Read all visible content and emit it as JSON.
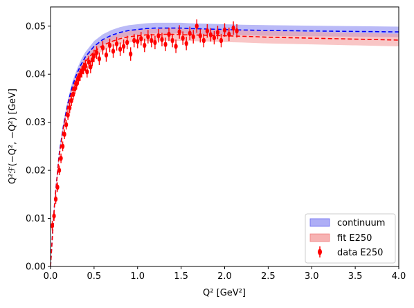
{
  "chart_data": {
    "type": "line",
    "title": "",
    "xlabel": "Q² [GeV²]",
    "ylabel": "Q²ℱ(−Q², −Q²) [GeV]",
    "xlim": [
      0.0,
      4.0
    ],
    "ylim": [
      0.0,
      0.054
    ],
    "x_ticks": [
      0.0,
      0.5,
      1.0,
      1.5,
      2.0,
      2.5,
      3.0,
      3.5,
      4.0
    ],
    "x_tick_labels": [
      "0.0",
      "0.5",
      "1.0",
      "1.5",
      "2.0",
      "2.5",
      "3.0",
      "3.5",
      "4.0"
    ],
    "y_ticks": [
      0.0,
      0.01,
      0.02,
      0.03,
      0.04,
      0.05
    ],
    "y_tick_labels": [
      "0.00",
      "0.01",
      "0.02",
      "0.03",
      "0.04",
      "0.05"
    ],
    "grid": false,
    "legend": {
      "placement": "lower-right",
      "entries": [
        "continuum",
        "fit E250",
        "data E250"
      ]
    },
    "series": [
      {
        "name": "continuum",
        "kind": "band-with-dashed-center",
        "color": "#0000ff",
        "band_color": "#8c8cf2",
        "x": [
          0.0,
          0.02,
          0.05,
          0.1,
          0.15,
          0.2,
          0.25,
          0.3,
          0.35,
          0.4,
          0.5,
          0.6,
          0.7,
          0.8,
          0.9,
          1.0,
          1.1,
          1.2,
          1.3,
          1.4,
          1.5,
          1.6,
          1.8,
          2.0,
          2.2,
          2.5,
          3.0,
          3.5,
          4.0
        ],
        "center": [
          0.0,
          0.006,
          0.014,
          0.0235,
          0.0295,
          0.034,
          0.0375,
          0.04,
          0.042,
          0.0436,
          0.0458,
          0.0472,
          0.0481,
          0.0487,
          0.0491,
          0.0493,
          0.0495,
          0.0496,
          0.0496,
          0.0496,
          0.0496,
          0.0495,
          0.0494,
          0.0493,
          0.0492,
          0.0491,
          0.049,
          0.0489,
          0.0488
        ],
        "band_low": [
          0.0,
          0.0058,
          0.0136,
          0.0229,
          0.0288,
          0.0332,
          0.0366,
          0.0391,
          0.041,
          0.0426,
          0.0447,
          0.0461,
          0.047,
          0.0476,
          0.048,
          0.0482,
          0.0484,
          0.0485,
          0.0485,
          0.0485,
          0.0485,
          0.0484,
          0.0483,
          0.0482,
          0.0481,
          0.048,
          0.0479,
          0.0478,
          0.0477
        ],
        "band_high": [
          0.0,
          0.0062,
          0.0144,
          0.0241,
          0.0302,
          0.0348,
          0.0384,
          0.0409,
          0.043,
          0.0446,
          0.0469,
          0.0483,
          0.0492,
          0.0498,
          0.0502,
          0.0504,
          0.0506,
          0.0507,
          0.0507,
          0.0507,
          0.0507,
          0.0506,
          0.0505,
          0.0504,
          0.0503,
          0.0502,
          0.0501,
          0.05,
          0.0499
        ]
      },
      {
        "name": "fit E250",
        "kind": "band-with-dashed-center",
        "color": "#ff0000",
        "band_color": "#f5a0a0",
        "x": [
          0.0,
          0.02,
          0.05,
          0.1,
          0.15,
          0.2,
          0.25,
          0.3,
          0.35,
          0.4,
          0.5,
          0.6,
          0.7,
          0.8,
          0.9,
          1.0,
          1.1,
          1.2,
          1.3,
          1.4,
          1.5,
          1.6,
          1.8,
          2.0,
          2.2,
          2.5,
          3.0,
          3.5,
          4.0
        ],
        "center": [
          0.0,
          0.0059,
          0.0138,
          0.0231,
          0.029,
          0.0334,
          0.0368,
          0.0392,
          0.0411,
          0.0426,
          0.0447,
          0.046,
          0.0468,
          0.0474,
          0.0478,
          0.048,
          0.0482,
          0.0482,
          0.0483,
          0.0483,
          0.0482,
          0.0482,
          0.0481,
          0.048,
          0.0479,
          0.0477,
          0.0475,
          0.0473,
          0.0471
        ],
        "band_low": [
          0.0,
          0.0057,
          0.0134,
          0.0225,
          0.0283,
          0.0326,
          0.0359,
          0.0383,
          0.0401,
          0.0416,
          0.0436,
          0.0449,
          0.0457,
          0.0463,
          0.0466,
          0.0468,
          0.0469,
          0.047,
          0.047,
          0.047,
          0.0469,
          0.0469,
          0.0468,
          0.0467,
          0.0466,
          0.0464,
          0.0462,
          0.046,
          0.0458
        ],
        "band_high": [
          0.0,
          0.0061,
          0.0142,
          0.0237,
          0.0297,
          0.0342,
          0.0377,
          0.0401,
          0.0421,
          0.0436,
          0.0458,
          0.0471,
          0.0479,
          0.0485,
          0.049,
          0.0492,
          0.0494,
          0.0494,
          0.0496,
          0.0496,
          0.0495,
          0.0495,
          0.0494,
          0.0493,
          0.0492,
          0.049,
          0.0488,
          0.0486,
          0.0484
        ]
      },
      {
        "name": "data E250",
        "kind": "errorbar-points",
        "color": "#ff0000",
        "x": [
          0.02,
          0.04,
          0.06,
          0.08,
          0.1,
          0.12,
          0.14,
          0.16,
          0.18,
          0.2,
          0.22,
          0.24,
          0.26,
          0.28,
          0.3,
          0.32,
          0.34,
          0.36,
          0.38,
          0.4,
          0.42,
          0.44,
          0.46,
          0.48,
          0.5,
          0.53,
          0.56,
          0.6,
          0.64,
          0.68,
          0.72,
          0.76,
          0.8,
          0.84,
          0.88,
          0.92,
          0.96,
          1.0,
          1.04,
          1.08,
          1.12,
          1.16,
          1.2,
          1.24,
          1.28,
          1.32,
          1.36,
          1.4,
          1.44,
          1.48,
          1.52,
          1.56,
          1.6,
          1.64,
          1.68,
          1.72,
          1.76,
          1.8,
          1.84,
          1.88,
          1.92,
          1.96,
          2.0,
          2.05,
          2.1,
          2.14
        ],
        "y": [
          0.0085,
          0.0105,
          0.014,
          0.0165,
          0.02,
          0.0225,
          0.025,
          0.0275,
          0.0295,
          0.0315,
          0.033,
          0.0345,
          0.0358,
          0.037,
          0.038,
          0.039,
          0.0398,
          0.0405,
          0.0412,
          0.0418,
          0.0405,
          0.0425,
          0.0415,
          0.043,
          0.0438,
          0.0445,
          0.0432,
          0.0455,
          0.044,
          0.046,
          0.0448,
          0.0463,
          0.0452,
          0.0458,
          0.0466,
          0.0442,
          0.047,
          0.0468,
          0.0474,
          0.046,
          0.0478,
          0.047,
          0.0466,
          0.048,
          0.0472,
          0.0462,
          0.0483,
          0.047,
          0.0458,
          0.0488,
          0.0475,
          0.0464,
          0.0485,
          0.0478,
          0.05,
          0.048,
          0.047,
          0.049,
          0.0482,
          0.0476,
          0.0487,
          0.047,
          0.0492,
          0.0483,
          0.0496,
          0.049
        ],
        "err": [
          0.001,
          0.001,
          0.001,
          0.001,
          0.001,
          0.001,
          0.001,
          0.001,
          0.001,
          0.001,
          0.0011,
          0.0011,
          0.0011,
          0.0011,
          0.0012,
          0.0012,
          0.0012,
          0.0012,
          0.0012,
          0.0012,
          0.0012,
          0.0013,
          0.0013,
          0.0013,
          0.0013,
          0.0013,
          0.0013,
          0.0014,
          0.0014,
          0.0014,
          0.0014,
          0.0014,
          0.0014,
          0.0014,
          0.0014,
          0.0014,
          0.0014,
          0.0014,
          0.0014,
          0.0014,
          0.0014,
          0.0014,
          0.0014,
          0.0014,
          0.0014,
          0.0014,
          0.0014,
          0.0014,
          0.0014,
          0.0014,
          0.0014,
          0.0014,
          0.0014,
          0.0014,
          0.0014,
          0.0014,
          0.0014,
          0.0014,
          0.0014,
          0.0014,
          0.0014,
          0.0014,
          0.0014,
          0.0014,
          0.0014,
          0.0014
        ]
      }
    ]
  }
}
